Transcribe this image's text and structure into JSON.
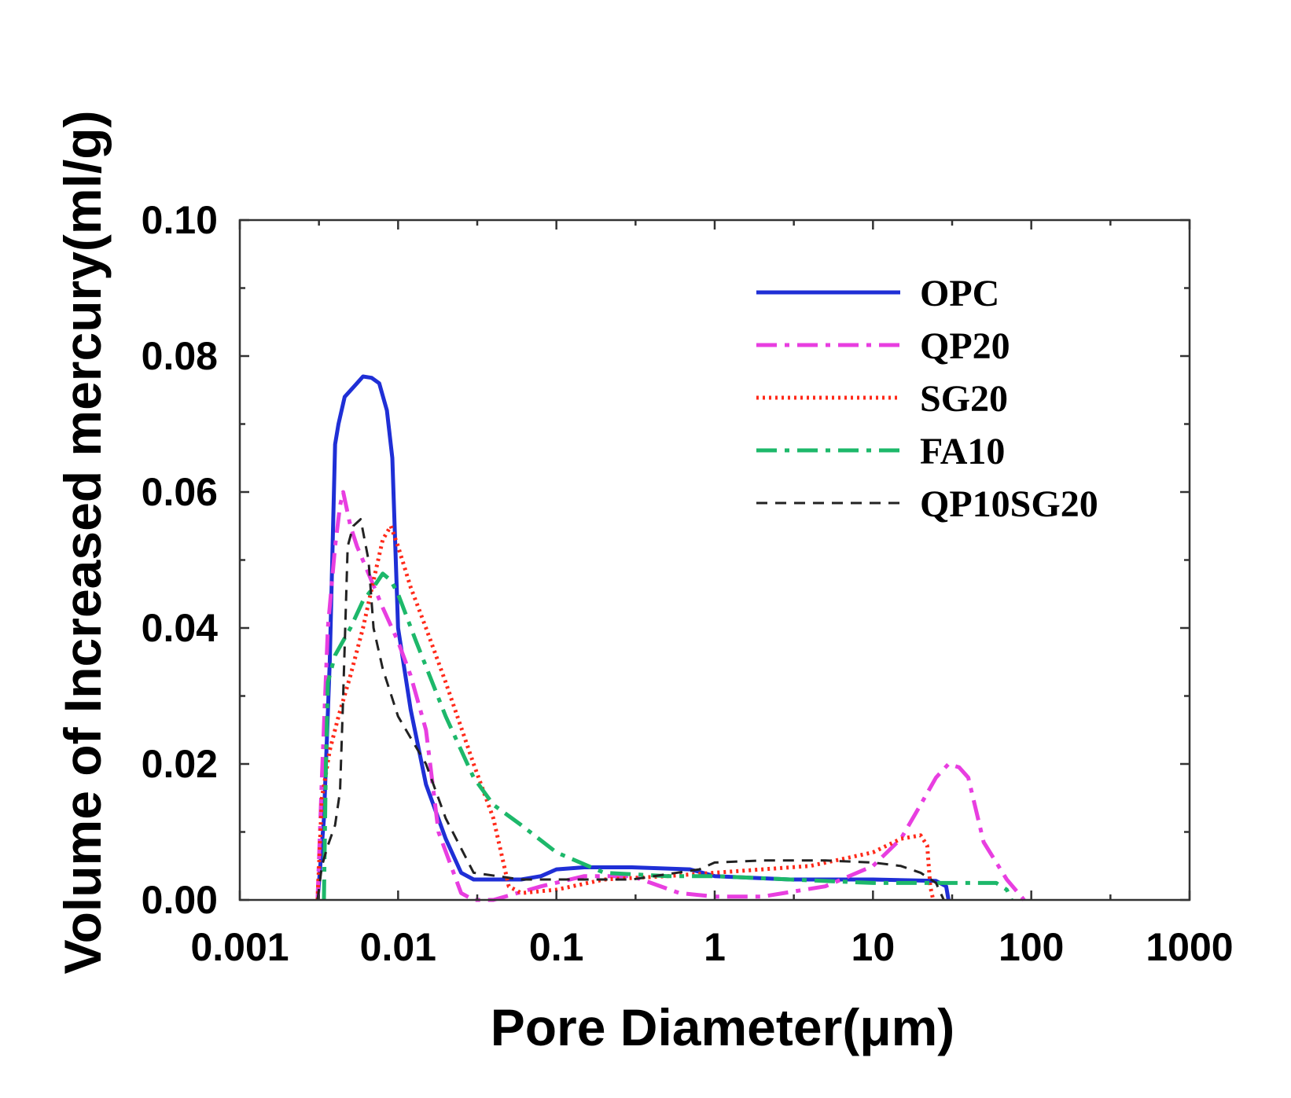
{
  "chart_data": {
    "type": "line",
    "title": "",
    "xlabel": "Pore Diameter(μm)",
    "ylabel": "Volume of Increased mercury(ml/g)",
    "xscale": "log",
    "xlim": [
      0.001,
      1000
    ],
    "ylim": [
      0,
      0.1
    ],
    "xticks": [
      {
        "value": 0.001,
        "label": "0.001"
      },
      {
        "value": 0.01,
        "label": "0.01"
      },
      {
        "value": 0.1,
        "label": "0.1"
      },
      {
        "value": 1,
        "label": "1"
      },
      {
        "value": 10,
        "label": "10"
      },
      {
        "value": 100,
        "label": "100"
      },
      {
        "value": 1000,
        "label": "1000"
      }
    ],
    "yticks": [
      {
        "value": 0.0,
        "label": "0.00"
      },
      {
        "value": 0.02,
        "label": "0.02"
      },
      {
        "value": 0.04,
        "label": "0.04"
      },
      {
        "value": 0.06,
        "label": "0.06"
      },
      {
        "value": 0.08,
        "label": "0.08"
      },
      {
        "value": 0.1,
        "label": "0.10"
      }
    ],
    "grid": false,
    "legend_position": "top-right",
    "series": [
      {
        "name": "OPC",
        "color": "#1f2fd6",
        "style": "solid",
        "points": [
          [
            0.0031,
            0.0
          ],
          [
            0.0032,
            0.004
          ],
          [
            0.0034,
            0.012
          ],
          [
            0.0037,
            0.035
          ],
          [
            0.004,
            0.067
          ],
          [
            0.0042,
            0.07
          ],
          [
            0.0046,
            0.074
          ],
          [
            0.0055,
            0.076
          ],
          [
            0.006,
            0.077
          ],
          [
            0.0068,
            0.0768
          ],
          [
            0.0076,
            0.076
          ],
          [
            0.0085,
            0.072
          ],
          [
            0.0092,
            0.065
          ],
          [
            0.01,
            0.04
          ],
          [
            0.012,
            0.028
          ],
          [
            0.015,
            0.017
          ],
          [
            0.02,
            0.009
          ],
          [
            0.025,
            0.004
          ],
          [
            0.03,
            0.003
          ],
          [
            0.06,
            0.003
          ],
          [
            0.08,
            0.0035
          ],
          [
            0.1,
            0.0045
          ],
          [
            0.15,
            0.0048
          ],
          [
            0.3,
            0.0048
          ],
          [
            0.7,
            0.0045
          ],
          [
            1.0,
            0.0035
          ],
          [
            3.0,
            0.003
          ],
          [
            10.0,
            0.003
          ],
          [
            25.0,
            0.0028
          ],
          [
            29.0,
            0.002
          ],
          [
            30.0,
            0.0
          ]
        ]
      },
      {
        "name": "QP20",
        "color": "#e83ee0",
        "style": "dashdot",
        "points": [
          [
            0.0031,
            0.0
          ],
          [
            0.0033,
            0.018
          ],
          [
            0.0036,
            0.04
          ],
          [
            0.004,
            0.052
          ],
          [
            0.0043,
            0.058
          ],
          [
            0.0045,
            0.06
          ],
          [
            0.005,
            0.055
          ],
          [
            0.0055,
            0.052
          ],
          [
            0.0065,
            0.048
          ],
          [
            0.008,
            0.043
          ],
          [
            0.01,
            0.038
          ],
          [
            0.012,
            0.033
          ],
          [
            0.015,
            0.025
          ],
          [
            0.018,
            0.01
          ],
          [
            0.025,
            0.001
          ],
          [
            0.03,
            0.0
          ],
          [
            0.04,
            0.0
          ],
          [
            0.08,
            0.002
          ],
          [
            0.15,
            0.0035
          ],
          [
            0.3,
            0.0035
          ],
          [
            0.6,
            0.001
          ],
          [
            1.0,
            0.0005
          ],
          [
            2.0,
            0.0005
          ],
          [
            5.0,
            0.002
          ],
          [
            10.0,
            0.005
          ],
          [
            15.0,
            0.009
          ],
          [
            20.0,
            0.014
          ],
          [
            25.0,
            0.018
          ],
          [
            30.0,
            0.02
          ],
          [
            35.0,
            0.0195
          ],
          [
            40.0,
            0.018
          ],
          [
            50.0,
            0.0085
          ],
          [
            70.0,
            0.003
          ],
          [
            90.0,
            0.0
          ]
        ]
      },
      {
        "name": "SG20",
        "color": "#ff2a1a",
        "style": "dotted",
        "points": [
          [
            0.0031,
            0.0
          ],
          [
            0.0033,
            0.015
          ],
          [
            0.0037,
            0.022
          ],
          [
            0.0042,
            0.027
          ],
          [
            0.005,
            0.033
          ],
          [
            0.006,
            0.04
          ],
          [
            0.007,
            0.047
          ],
          [
            0.008,
            0.053
          ],
          [
            0.009,
            0.055
          ],
          [
            0.01,
            0.052
          ],
          [
            0.012,
            0.046
          ],
          [
            0.015,
            0.04
          ],
          [
            0.02,
            0.032
          ],
          [
            0.03,
            0.02
          ],
          [
            0.04,
            0.012
          ],
          [
            0.05,
            0.002
          ],
          [
            0.06,
            0.001
          ],
          [
            0.1,
            0.0015
          ],
          [
            0.2,
            0.003
          ],
          [
            0.5,
            0.0035
          ],
          [
            1.0,
            0.004
          ],
          [
            2.0,
            0.0045
          ],
          [
            4.0,
            0.005
          ],
          [
            10.0,
            0.007
          ],
          [
            15.0,
            0.009
          ],
          [
            20.0,
            0.0095
          ],
          [
            22.0,
            0.008
          ],
          [
            23.0,
            0.002
          ],
          [
            24.0,
            0.0
          ]
        ]
      },
      {
        "name": "FA10",
        "color": "#1db86a",
        "style": "dashdot",
        "points": [
          [
            0.0034,
            0.0
          ],
          [
            0.0035,
            0.02
          ],
          [
            0.0036,
            0.032
          ],
          [
            0.004,
            0.036
          ],
          [
            0.005,
            0.04
          ],
          [
            0.006,
            0.044
          ],
          [
            0.007,
            0.046
          ],
          [
            0.008,
            0.048
          ],
          [
            0.009,
            0.047
          ],
          [
            0.01,
            0.045
          ],
          [
            0.013,
            0.038
          ],
          [
            0.02,
            0.027
          ],
          [
            0.03,
            0.018
          ],
          [
            0.04,
            0.014
          ],
          [
            0.06,
            0.011
          ],
          [
            0.1,
            0.007
          ],
          [
            0.2,
            0.004
          ],
          [
            0.5,
            0.0035
          ],
          [
            1.0,
            0.0035
          ],
          [
            3.0,
            0.003
          ],
          [
            10.0,
            0.0025
          ],
          [
            30.0,
            0.0025
          ],
          [
            60.0,
            0.0025
          ],
          [
            70.0,
            0.0015
          ],
          [
            75.0,
            0.0
          ]
        ]
      },
      {
        "name": "QP10SG20",
        "color": "#222222",
        "style": "dashed",
        "points": [
          [
            0.0031,
            0.0
          ],
          [
            0.0033,
            0.005
          ],
          [
            0.0036,
            0.008
          ],
          [
            0.004,
            0.011
          ],
          [
            0.0043,
            0.016
          ],
          [
            0.0045,
            0.03
          ],
          [
            0.0048,
            0.052
          ],
          [
            0.0052,
            0.055
          ],
          [
            0.0058,
            0.056
          ],
          [
            0.0065,
            0.05
          ],
          [
            0.007,
            0.04
          ],
          [
            0.008,
            0.034
          ],
          [
            0.01,
            0.027
          ],
          [
            0.015,
            0.02
          ],
          [
            0.02,
            0.012
          ],
          [
            0.03,
            0.004
          ],
          [
            0.06,
            0.003
          ],
          [
            0.1,
            0.003
          ],
          [
            0.3,
            0.003
          ],
          [
            0.8,
            0.0045
          ],
          [
            1.0,
            0.0055
          ],
          [
            2.0,
            0.0058
          ],
          [
            5.0,
            0.0058
          ],
          [
            10.0,
            0.0055
          ],
          [
            15.0,
            0.005
          ],
          [
            20.0,
            0.004
          ],
          [
            25.0,
            0.0025
          ],
          [
            28.0,
            0.0
          ]
        ]
      }
    ]
  }
}
